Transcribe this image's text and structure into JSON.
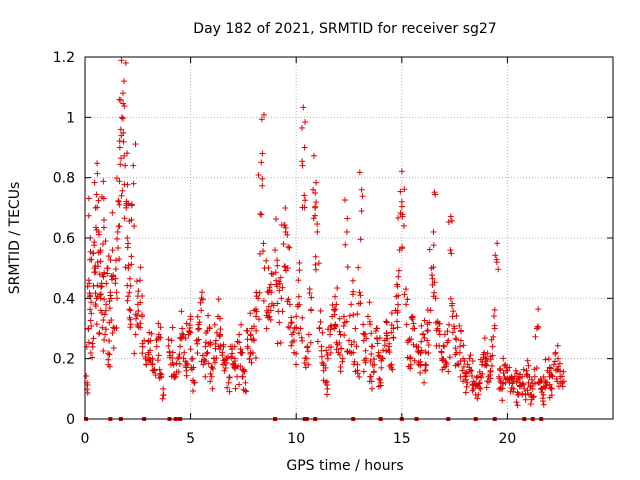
{
  "chart_data": {
    "type": "scatter",
    "title": "Day 182 of 2021, SRMTID for receiver sg27",
    "xlabel": "GPS time / hours",
    "ylabel": "SRMTID / TECUs",
    "xlim": [
      0,
      25
    ],
    "ylim": [
      0,
      1.2
    ],
    "x_ticks": [
      0,
      5,
      10,
      15,
      20
    ],
    "x_tick_labels": [
      "0",
      "5",
      "10",
      "15",
      "20"
    ],
    "y_ticks": [
      0,
      0.2,
      0.4,
      0.6,
      0.8,
      1.0,
      1.2
    ],
    "y_tick_labels": [
      "0",
      "0.2",
      "0.4",
      "0.6",
      "0.8",
      "1",
      "1.2"
    ],
    "grid": true,
    "marker": "plus",
    "color": "#e00000",
    "series": [
      {
        "name": "SRMTID",
        "x": [
          0.05,
          0.1,
          0.15,
          0.2,
          0.25,
          0.3,
          0.35,
          0.4,
          0.45,
          0.5,
          0.55,
          0.6,
          0.65,
          0.7,
          0.75,
          0.8,
          0.85,
          0.9,
          0.95,
          1.0,
          1.05,
          1.1,
          1.15,
          1.2,
          1.3,
          1.4,
          1.5,
          1.55,
          1.6,
          1.65,
          1.7,
          1.75,
          1.8,
          1.85,
          1.9,
          1.95,
          2.0,
          2.05,
          2.1,
          2.15,
          2.2,
          2.3,
          2.4,
          2.5,
          2.6,
          2.7,
          2.8,
          2.9,
          3.0,
          3.1,
          3.2,
          3.3,
          3.4,
          3.5,
          3.6,
          3.7,
          4.0,
          4.1,
          4.2,
          4.3,
          4.4,
          4.5,
          4.6,
          4.7,
          4.8,
          4.9,
          5.0,
          5.1,
          5.2,
          5.3,
          5.4,
          5.5,
          5.6,
          5.7,
          5.8,
          5.9,
          6.0,
          6.1,
          6.2,
          6.3,
          6.4,
          6.5,
          6.6,
          6.7,
          6.8,
          6.9,
          7.0,
          7.1,
          7.2,
          7.3,
          7.4,
          7.5,
          7.6,
          7.7,
          7.8,
          7.9,
          8.0,
          8.1,
          8.2,
          8.3,
          8.4,
          8.5,
          8.6,
          8.7,
          8.8,
          8.9,
          9.0,
          9.1,
          9.2,
          9.3,
          9.4,
          9.5,
          9.6,
          9.7,
          9.8,
          9.9,
          10.0,
          10.1,
          10.2,
          10.3,
          10.4,
          10.5,
          10.6,
          10.7,
          10.8,
          10.9,
          11.0,
          11.1,
          11.2,
          11.3,
          11.4,
          11.5,
          11.6,
          11.7,
          11.8,
          11.9,
          12.0,
          12.1,
          12.2,
          12.3,
          12.4,
          12.5,
          12.6,
          12.7,
          12.8,
          12.9,
          13.0,
          13.1,
          13.2,
          13.3,
          13.4,
          13.5,
          13.6,
          13.7,
          13.8,
          13.9,
          14.0,
          14.1,
          14.2,
          14.3,
          14.4,
          14.5,
          14.6,
          14.7,
          14.8,
          14.9,
          15.0,
          15.1,
          15.2,
          15.3,
          15.4,
          15.5,
          15.6,
          15.7,
          15.8,
          15.9,
          16.0,
          16.1,
          16.2,
          16.3,
          16.4,
          16.5,
          16.6,
          16.7,
          16.8,
          16.9,
          17.0,
          17.1,
          17.2,
          17.3,
          17.4,
          17.5,
          17.6,
          17.7,
          17.8,
          17.9,
          18.0,
          18.1,
          18.2,
          18.3,
          18.4,
          18.5,
          18.6,
          18.7,
          18.8,
          18.9,
          19.0,
          19.1,
          19.2,
          19.3,
          19.4,
          19.5,
          19.6,
          19.7,
          19.8,
          19.9,
          20.0,
          20.1,
          20.2,
          20.3,
          20.4,
          20.5,
          20.6,
          20.7,
          20.8,
          20.9,
          21.0,
          21.1,
          21.2,
          21.3,
          21.4,
          21.5,
          21.6,
          21.7,
          21.8,
          21.9,
          22.0,
          22.1,
          22.2,
          22.3,
          22.4,
          22.5,
          22.6,
          22.7,
          0.12,
          0.3,
          0.45,
          0.6,
          0.35,
          0.25,
          0.55,
          0.5,
          0.7,
          0.4,
          0.52,
          0.62,
          0.48,
          0.36,
          0.44,
          0.58,
          0.66,
          0.28,
          0.38,
          0.5,
          0.18,
          0.32,
          0.42,
          0.56,
          0.3,
          0.42,
          0.62,
          0.72,
          0.9,
          0.96,
          1.0,
          1.08,
          1.12,
          0.84,
          0.7,
          0.6,
          0.5,
          0.42,
          0.36,
          0.66,
          0.78,
          0.28,
          0.38,
          0.46,
          0.34,
          0.26,
          0.18,
          0.22,
          0.26,
          0.2,
          0.16,
          0.24,
          0.28,
          0.14,
          0.1,
          0.22,
          0.26,
          0.18,
          0.14,
          0.2,
          0.24,
          0.3,
          0.22,
          0.16,
          0.28,
          0.34,
          0.2,
          0.12,
          0.26,
          0.3,
          0.36,
          0.18,
          0.24,
          0.22,
          0.3,
          0.14,
          0.2,
          0.26,
          0.34,
          0.28,
          0.22,
          0.16,
          0.2,
          0.12,
          0.24,
          0.18,
          0.2,
          0.14,
          0.28,
          0.22,
          0.16,
          0.12,
          0.24,
          0.2,
          0.3,
          0.26,
          0.34,
          0.4,
          0.68,
          0.88,
          0.5,
          0.3,
          0.42,
          0.36,
          0.48,
          0.56,
          0.44,
          0.32,
          0.4,
          0.58,
          0.62,
          0.5,
          0.38,
          0.28,
          0.22,
          0.34,
          0.46,
          0.3,
          0.84,
          0.9,
          0.2,
          0.28,
          0.36,
          0.76,
          0.7,
          0.62,
          0.3,
          0.24,
          0.16,
          0.12,
          0.2,
          0.28,
          0.34,
          0.3,
          0.38,
          0.22,
          0.28,
          0.2,
          0.32,
          0.62,
          0.26,
          0.38,
          0.22,
          0.3,
          0.18,
          0.42,
          0.76,
          0.26,
          0.2,
          0.34,
          0.14,
          0.24,
          0.18,
          0.3,
          0.22,
          0.12,
          0.2,
          0.26,
          0.32,
          0.24,
          0.18,
          0.3,
          0.36,
          0.44,
          0.56,
          0.72,
          0.64,
          0.38,
          0.26,
          0.2,
          0.34,
          0.3,
          0.24,
          0.18,
          0.22,
          0.28,
          0.16,
          0.26,
          0.32,
          0.5,
          0.62,
          0.4,
          0.3,
          0.28,
          0.2,
          0.24,
          0.18,
          0.26,
          0.56,
          0.34,
          0.3,
          0.22,
          0.18,
          0.26,
          0.2,
          0.14,
          0.12,
          0.2,
          0.16,
          0.1,
          0.08,
          0.14,
          0.12,
          0.18,
          0.22,
          0.2,
          0.14,
          0.16,
          0.24,
          0.3,
          0.52,
          0.14,
          0.1,
          0.12,
          0.18,
          0.16,
          0.12,
          0.14,
          0.1,
          0.16,
          0.08,
          0.12,
          0.14,
          0.1,
          0.16,
          0.12,
          0.08,
          0.1,
          0.14,
          0.3,
          0.12,
          0.1,
          0.08,
          0.12,
          0.16,
          0.14,
          0.1,
          0.18,
          0.16,
          0.2,
          0.14,
          0.12,
          0.18
        ]
      }
    ],
    "zero_markers_x": [
      0.05,
      1.2,
      1.7,
      2.8,
      4.0,
      4.3,
      4.5,
      9.0,
      10.4,
      10.5,
      10.9,
      12.7,
      14.0,
      15.0,
      15.7,
      17.2,
      18.5,
      19.4,
      20.8,
      21.2,
      21.6
    ]
  }
}
